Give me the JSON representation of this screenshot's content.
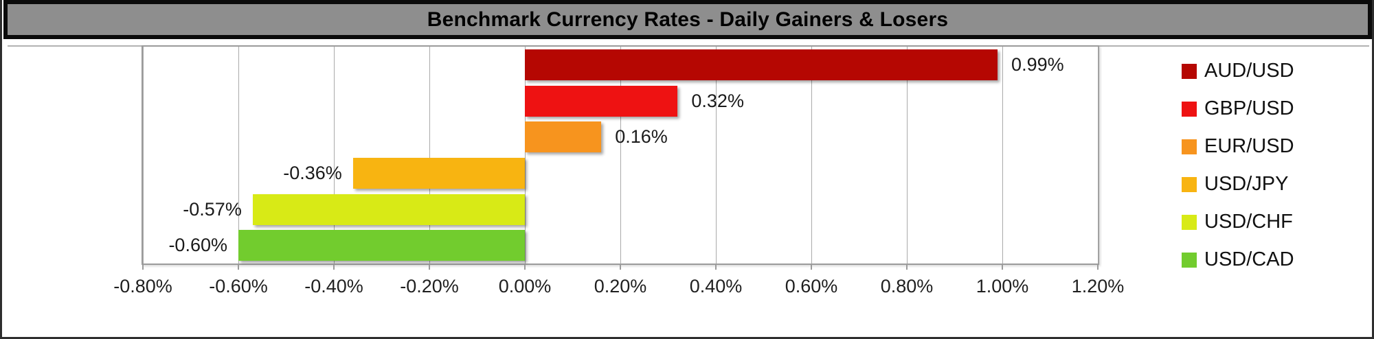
{
  "title": "Benchmark Currency Rates - Daily Gainers & Losers",
  "chart_data": {
    "type": "bar",
    "orientation": "horizontal",
    "title": "Benchmark Currency Rates - Daily Gainers & Losers",
    "categories": [
      "AUD/USD",
      "GBP/USD",
      "EUR/USD",
      "USD/JPY",
      "USD/CHF",
      "USD/CAD"
    ],
    "values": [
      0.99,
      0.32,
      0.16,
      -0.36,
      -0.57,
      -0.6
    ],
    "value_labels": [
      "0.99%",
      "0.32%",
      "0.16%",
      "-0.36%",
      "-0.57%",
      "-0.60%"
    ],
    "bar_colors": [
      "#B50702",
      "#EE1212",
      "#F7941E",
      "#F8B411",
      "#D8EA16",
      "#72CC2E"
    ],
    "xlabel": "",
    "ylabel": "",
    "xlim": [
      -0.8,
      1.2
    ],
    "x_tick_step": 0.2,
    "x_tick_labels": [
      "-0.80%",
      "-0.60%",
      "-0.40%",
      "-0.20%",
      "0.00%",
      "0.20%",
      "0.40%",
      "0.60%",
      "0.80%",
      "1.00%",
      "1.20%"
    ],
    "grid": "vertical",
    "legend_position": "right",
    "legend": [
      {
        "label": "AUD/USD",
        "color": "#B50702"
      },
      {
        "label": "GBP/USD",
        "color": "#EE1212"
      },
      {
        "label": "EUR/USD",
        "color": "#F7941E"
      },
      {
        "label": "USD/JPY",
        "color": "#F8B411"
      },
      {
        "label": "USD/CHF",
        "color": "#D8EA16"
      },
      {
        "label": "USD/CAD",
        "color": "#72CC2E"
      }
    ]
  },
  "colors": {
    "title_bar_bg": "#8E8E8E",
    "title_bar_border": "#0b0b0b",
    "plot_border": "#9b9b9b",
    "gridline": "#a9a9a9",
    "axis_label": "#1f1f1f",
    "chart_bg": "#ffffff"
  }
}
